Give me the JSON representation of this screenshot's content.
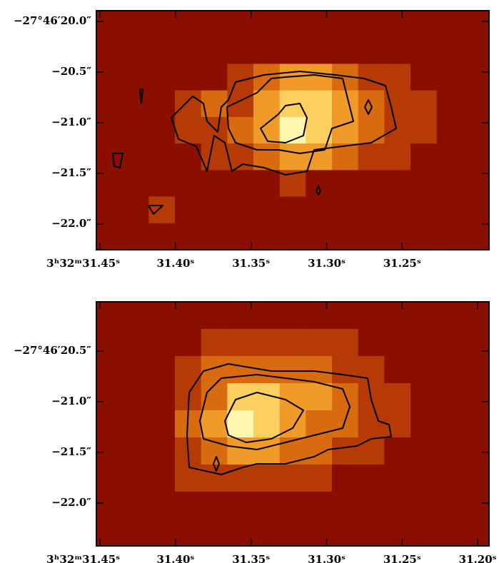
{
  "chart_data": [
    {
      "type": "heatmap",
      "xlim": [
        31.4524,
        31.1925
      ],
      "ylim": [
        -22.254,
        -19.894
      ],
      "xticks": [
        {
          "value": 31.45,
          "label": "3ʰ32ᵐ31.45ˢ"
        },
        {
          "value": 31.4,
          "label": "31.40ˢ"
        },
        {
          "value": 31.35,
          "label": "31.35ˢ"
        },
        {
          "value": 31.3,
          "label": "31.30ˢ"
        },
        {
          "value": 31.25,
          "label": "31.25ˢ"
        }
      ],
      "yticks": [
        {
          "value": -20.0,
          "label": "−27°46′20.0″"
        },
        {
          "value": -20.5,
          "label": "−20.5″"
        },
        {
          "value": -21.0,
          "label": "−21.0″"
        },
        {
          "value": -21.5,
          "label": "−21.5″"
        },
        {
          "value": -22.0,
          "label": "−22.0″"
        }
      ],
      "colors": [
        "#8b0f00",
        "#b53a05",
        "#d86a10",
        "#f09a2a",
        "#fbd060",
        "#fff6b0"
      ],
      "z": [
        [
          0,
          0,
          0,
          0,
          0,
          0,
          0,
          0,
          0,
          0,
          0,
          0,
          0,
          0,
          0
        ],
        [
          0,
          0,
          0,
          0,
          0,
          0,
          0,
          0,
          0,
          0,
          0,
          0,
          0,
          0,
          0
        ],
        [
          0,
          0,
          0,
          0,
          0,
          1,
          2,
          3,
          3,
          2,
          1,
          1,
          0,
          0,
          0
        ],
        [
          0,
          0,
          0,
          1,
          2,
          1,
          3,
          4,
          4,
          3,
          2,
          1,
          1,
          0,
          0
        ],
        [
          0,
          0,
          0,
          1,
          1,
          2,
          3,
          5,
          4,
          3,
          2,
          1,
          1,
          0,
          0
        ],
        [
          0,
          0,
          0,
          0,
          1,
          1,
          2,
          3,
          3,
          2,
          1,
          1,
          0,
          0,
          0
        ],
        [
          0,
          0,
          0,
          0,
          0,
          0,
          0,
          1,
          0,
          0,
          0,
          0,
          0,
          0,
          0
        ],
        [
          0,
          0,
          1,
          0,
          0,
          0,
          0,
          0,
          0,
          0,
          0,
          0,
          0,
          0,
          0
        ],
        [
          0,
          0,
          0,
          0,
          0,
          0,
          0,
          0,
          0,
          0,
          0,
          0,
          0,
          0,
          0
        ]
      ]
    },
    {
      "type": "heatmap",
      "xlim": [
        31.4524,
        31.1925
      ],
      "ylim": [
        -22.423,
        -20.014
      ],
      "xticks": [
        {
          "value": 31.45,
          "label": "3ʰ32ᵐ31.45ˢ"
        },
        {
          "value": 31.4,
          "label": "31.40ˢ"
        },
        {
          "value": 31.35,
          "label": "31.35ˢ"
        },
        {
          "value": 31.3,
          "label": "31.30ˢ"
        },
        {
          "value": 31.25,
          "label": "31.25ˢ"
        },
        {
          "value": 31.2,
          "label": "31.20ˢ"
        }
      ],
      "yticks": [
        {
          "value": -20.5,
          "label": "−27°46′20.5″"
        },
        {
          "value": -21.0,
          "label": "−21.0″"
        },
        {
          "value": -21.5,
          "label": "−21.5″"
        },
        {
          "value": -22.0,
          "label": "−22.0″"
        }
      ],
      "colors": [
        "#8b0f00",
        "#b53a05",
        "#d86a10",
        "#f09a2a",
        "#fbd060",
        "#fff6b0"
      ],
      "z": [
        [
          0,
          0,
          0,
          0,
          0,
          0,
          0,
          0,
          0,
          0,
          0,
          0,
          0,
          0,
          0
        ],
        [
          0,
          0,
          0,
          0,
          1,
          1,
          1,
          1,
          1,
          1,
          0,
          0,
          0,
          0,
          0
        ],
        [
          0,
          0,
          0,
          1,
          2,
          2,
          2,
          2,
          2,
          1,
          1,
          0,
          0,
          0,
          0
        ],
        [
          0,
          0,
          0,
          1,
          2,
          4,
          4,
          3,
          3,
          2,
          1,
          1,
          0,
          0,
          0
        ],
        [
          0,
          0,
          0,
          2,
          3,
          5,
          4,
          3,
          2,
          2,
          1,
          1,
          0,
          0,
          0
        ],
        [
          0,
          0,
          0,
          1,
          2,
          3,
          3,
          2,
          2,
          1,
          1,
          0,
          0,
          0,
          0
        ],
        [
          0,
          0,
          0,
          1,
          1,
          1,
          1,
          1,
          1,
          0,
          0,
          0,
          0,
          0,
          0
        ],
        [
          0,
          0,
          0,
          0,
          0,
          0,
          0,
          0,
          0,
          0,
          0,
          0,
          0,
          0,
          0
        ],
        [
          0,
          0,
          0,
          0,
          0,
          0,
          0,
          0,
          0,
          0,
          0,
          0,
          0,
          0,
          0
        ]
      ]
    }
  ]
}
